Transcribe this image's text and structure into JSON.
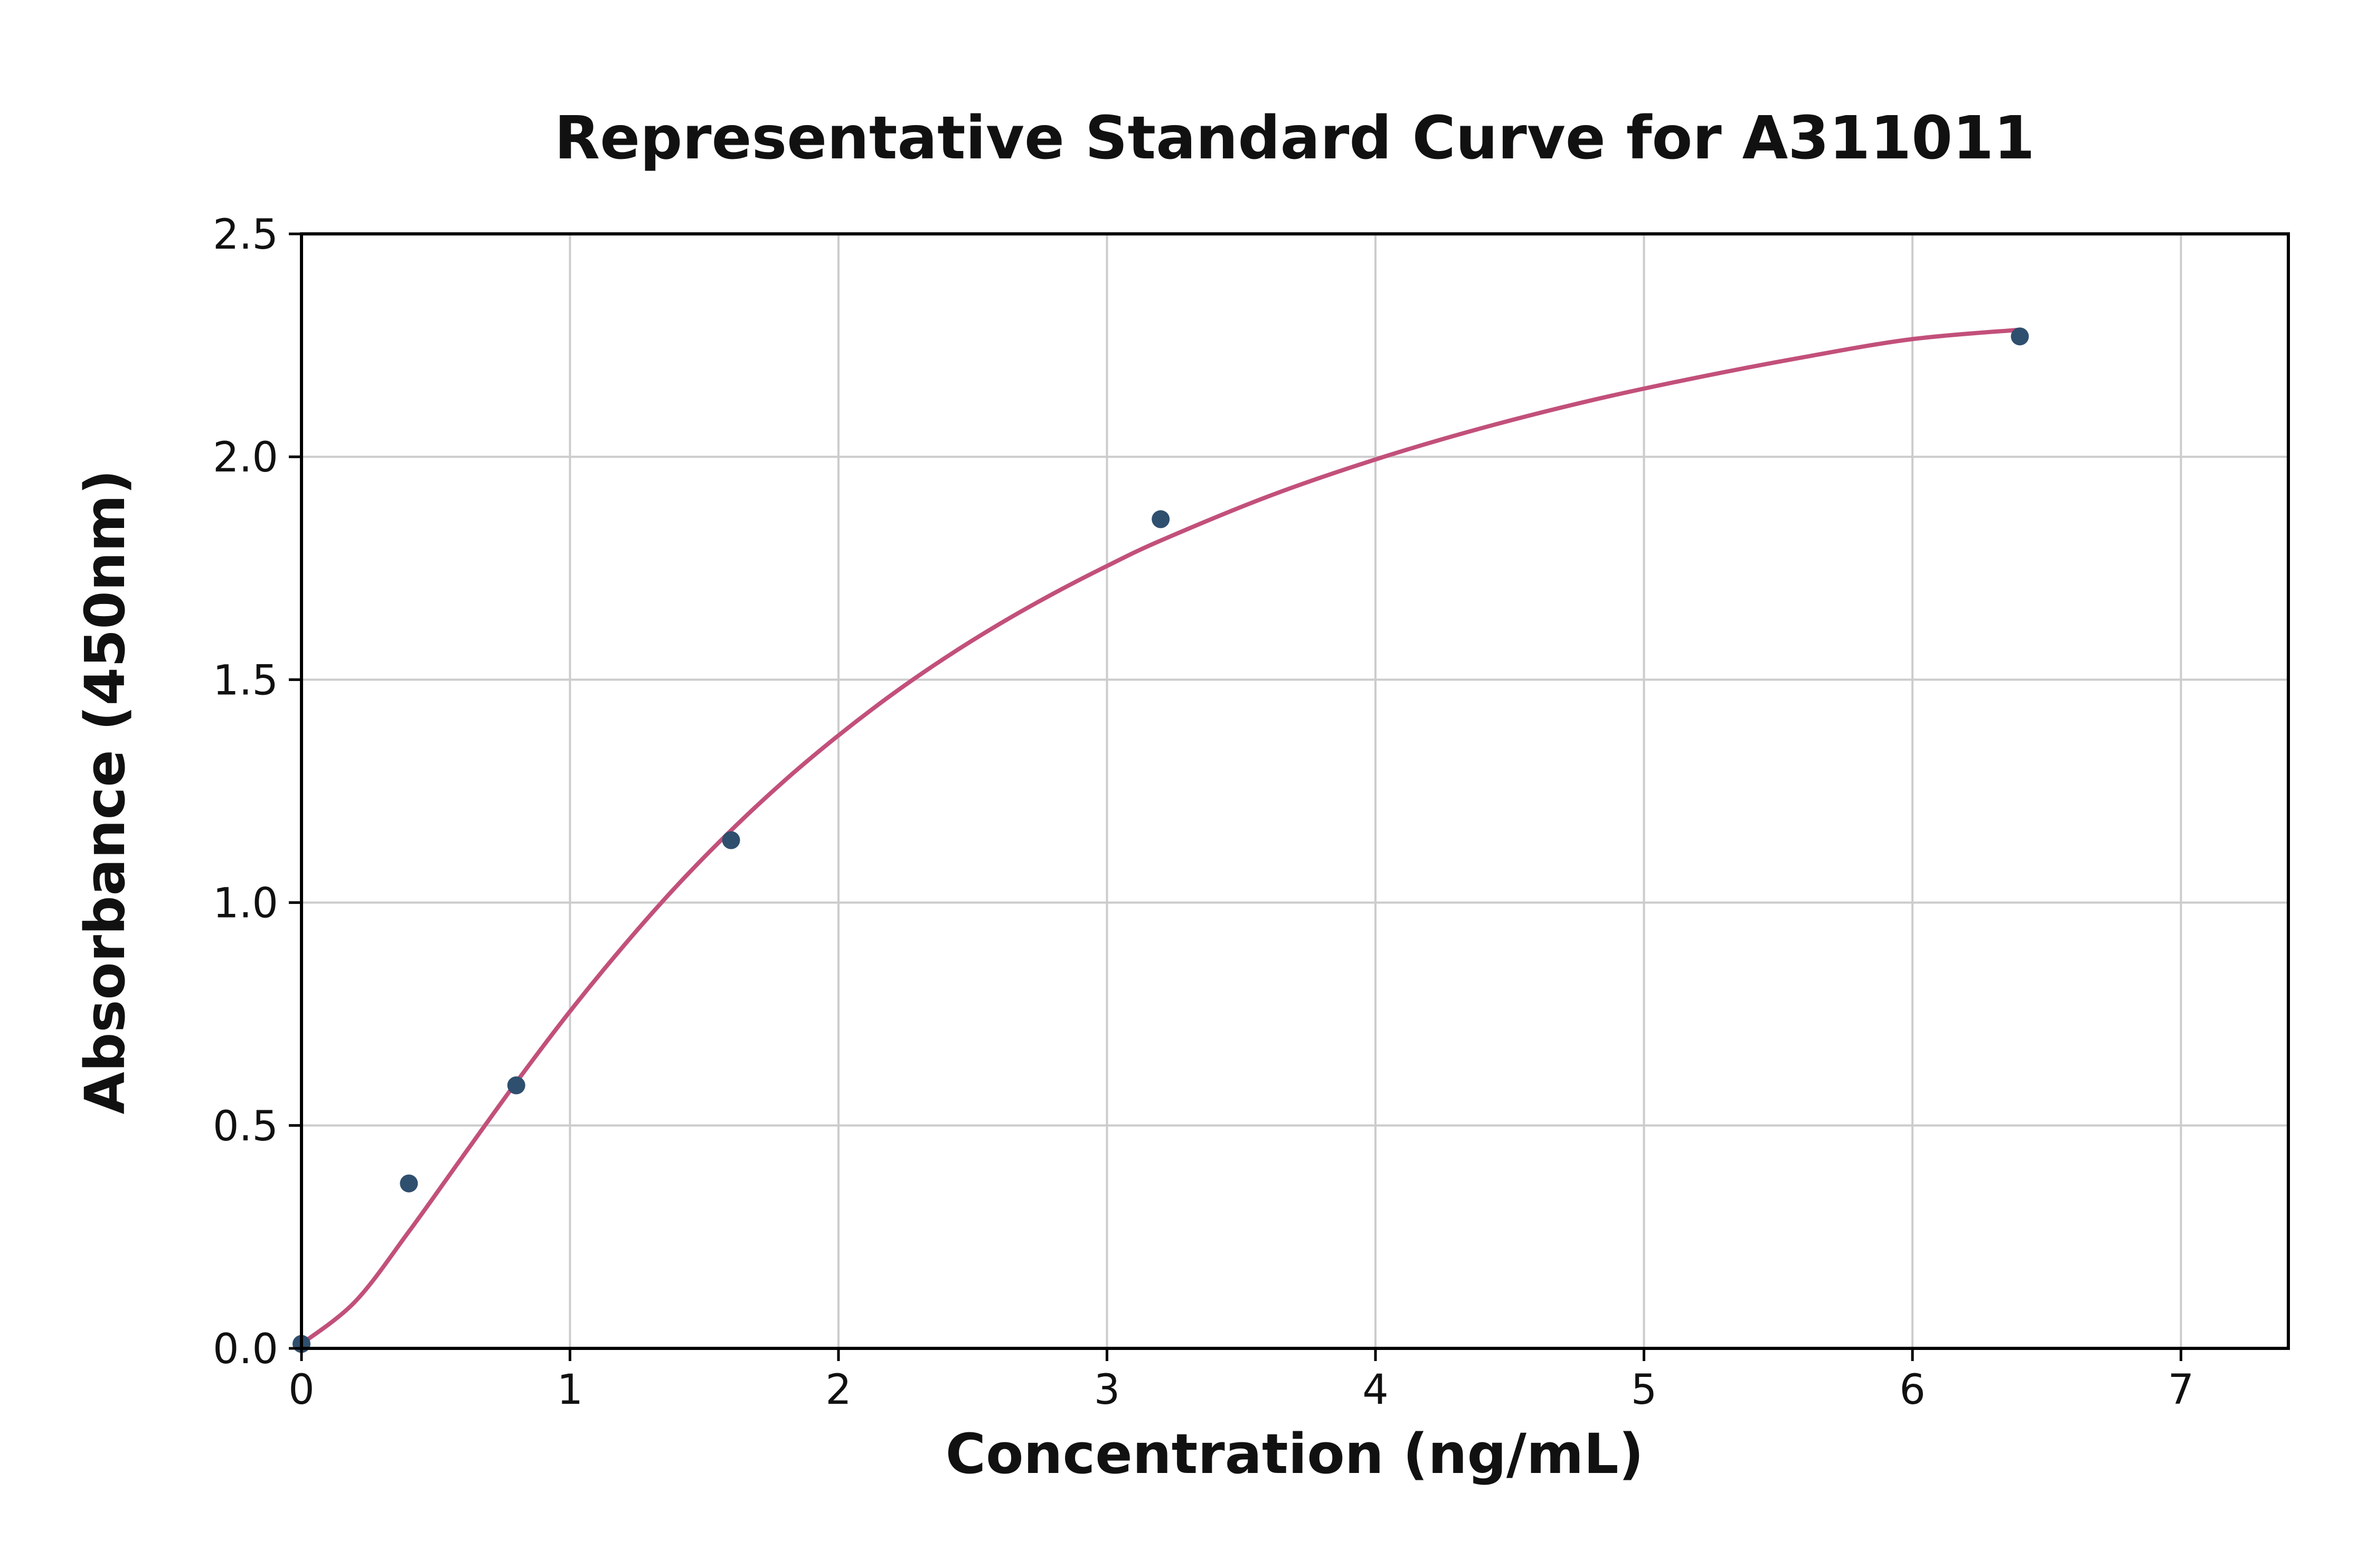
{
  "figure": {
    "title": "Representative Standard Curve for A311011",
    "xlabel": "Concentration (ng/mL)",
    "ylabel": "Absorbance (450nm)"
  },
  "colors": {
    "curve": "#c2507a",
    "point": "#2f4f6f",
    "grid": "#cccccc",
    "axis": "#000000",
    "text": "#111111",
    "background": "#ffffff"
  },
  "chart_data": {
    "type": "scatter",
    "title": "Representative Standard Curve for A311011",
    "xlabel": "Concentration (ng/mL)",
    "ylabel": "Absorbance (450nm)",
    "xlim": [
      0,
      7.4
    ],
    "ylim": [
      0,
      2.5
    ],
    "grid": true,
    "legend": "none",
    "x_ticks": [
      {
        "v": 0,
        "label": "0"
      },
      {
        "v": 1,
        "label": "1"
      },
      {
        "v": 2,
        "label": "2"
      },
      {
        "v": 3,
        "label": "3"
      },
      {
        "v": 4,
        "label": "4"
      },
      {
        "v": 5,
        "label": "5"
      },
      {
        "v": 6,
        "label": "6"
      },
      {
        "v": 7,
        "label": "7"
      }
    ],
    "y_ticks": [
      {
        "v": 0.0,
        "label": "0.0"
      },
      {
        "v": 0.5,
        "label": "0.5"
      },
      {
        "v": 1.0,
        "label": "1.0"
      },
      {
        "v": 1.5,
        "label": "1.5"
      },
      {
        "v": 2.0,
        "label": "2.0"
      },
      {
        "v": 2.5,
        "label": "2.5"
      }
    ],
    "series": [
      {
        "name": "standard-points",
        "type": "scatter",
        "x": [
          0,
          0.4,
          0.8,
          1.6,
          3.2,
          6.4
        ],
        "y": [
          0.01,
          0.37,
          0.59,
          1.14,
          1.86,
          2.27
        ]
      },
      {
        "name": "fit-curve",
        "type": "line",
        "x": [
          0,
          0.2,
          0.4,
          0.6,
          0.8,
          1.0,
          1.2,
          1.4,
          1.6,
          1.8,
          2.0,
          2.2,
          2.4,
          2.6,
          2.8,
          3.0,
          3.2,
          3.6,
          4.0,
          4.4,
          4.8,
          5.2,
          5.6,
          6.0,
          6.4
        ],
        "y": [
          0.01,
          0.105,
          0.262,
          0.43,
          0.597,
          0.756,
          0.903,
          1.039,
          1.162,
          1.274,
          1.375,
          1.467,
          1.55,
          1.625,
          1.693,
          1.755,
          1.812,
          1.911,
          1.994,
          2.065,
          2.126,
          2.178,
          2.224,
          2.264,
          2.285
        ]
      }
    ]
  }
}
